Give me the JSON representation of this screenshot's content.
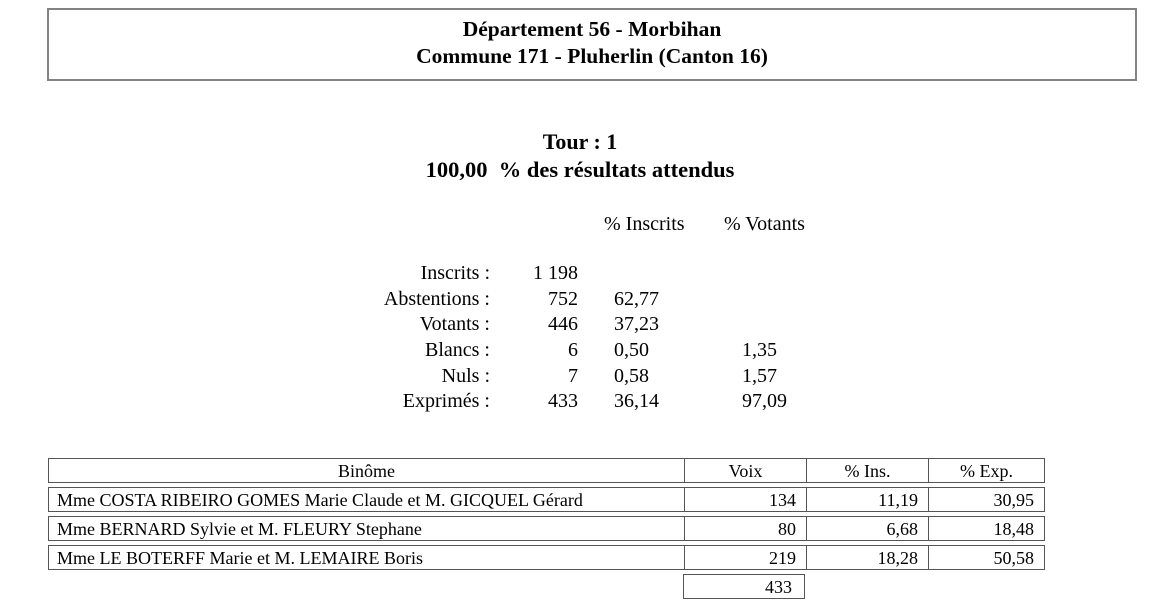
{
  "page": {
    "title_line1": "Département 56 - Morbihan",
    "title_line2": "Commune 171 - Pluherlin (Canton 16)",
    "tour_title": "Tour : 1",
    "tour_subtitle": "100,00  % des résultats attendus"
  },
  "participation": {
    "col_headers": {
      "inscrits": "% Inscrits",
      "votants": "% Votants"
    },
    "rows": [
      {
        "label": "Inscrits :",
        "value": "1 198",
        "pct_inscrits": "",
        "pct_votants": ""
      },
      {
        "label": "Abstentions :",
        "value": "752",
        "pct_inscrits": "62,77",
        "pct_votants": ""
      },
      {
        "label": "Votants :",
        "value": "446",
        "pct_inscrits": "37,23",
        "pct_votants": ""
      },
      {
        "label": "Blancs :",
        "value": "6",
        "pct_inscrits": "0,50",
        "pct_votants": "1,35"
      },
      {
        "label": "Nuls :",
        "value": "7",
        "pct_inscrits": "0,58",
        "pct_votants": "1,57"
      },
      {
        "label": "Exprimés :",
        "value": "433",
        "pct_inscrits": "36,14",
        "pct_votants": "97,09"
      }
    ]
  },
  "results_table": {
    "headers": {
      "binome": "Binôme",
      "voix": "Voix",
      "pct_ins": "% Ins.",
      "pct_exp": "% Exp."
    },
    "rows": [
      {
        "binome": "Mme COSTA RIBEIRO GOMES Marie Claude et M. GICQUEL Gérard",
        "voix": "134",
        "pct_ins": "11,19",
        "pct_exp": "30,95"
      },
      {
        "binome": "Mme BERNARD Sylvie et M. FLEURY Stephane",
        "voix": "80",
        "pct_ins": "6,68",
        "pct_exp": "18,48"
      },
      {
        "binome": "Mme LE BOTERFF Marie et M. LEMAIRE Boris",
        "voix": "219",
        "pct_ins": "18,28",
        "pct_exp": "50,58"
      }
    ],
    "total_voix": "433"
  },
  "colors": {
    "box_border": "#828282",
    "table_border": "#555555",
    "text": "#000000",
    "background": "#ffffff"
  }
}
